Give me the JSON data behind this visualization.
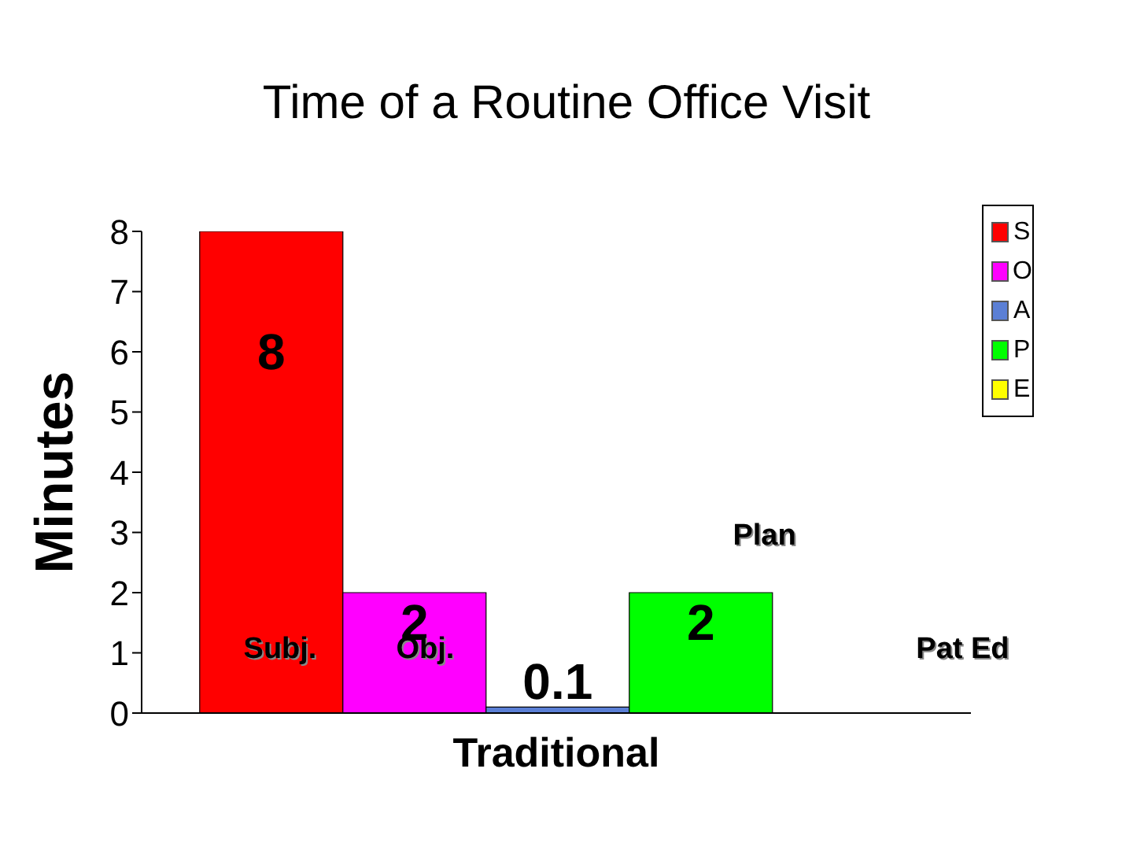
{
  "chart_data": {
    "type": "bar",
    "title": "Time of a Routine Office Visit",
    "ylabel": "Minutes",
    "categories": [
      "Traditional"
    ],
    "series": [
      {
        "name": "S",
        "color": "#ff0000",
        "values": [
          8
        ]
      },
      {
        "name": "O",
        "color": "#ff00ff",
        "values": [
          2
        ]
      },
      {
        "name": "A",
        "color": "#5b7fd5",
        "values": [
          0.1
        ]
      },
      {
        "name": "P",
        "color": "#00ff00",
        "values": [
          2
        ]
      },
      {
        "name": "E",
        "color": "#ffff00",
        "values": [
          null
        ]
      }
    ],
    "ylim": [
      0,
      8
    ],
    "yticks": [
      0,
      1,
      2,
      3,
      4,
      5,
      6,
      7,
      8
    ],
    "data_labels": true,
    "legend": "top right",
    "annotations": [
      "Subj.",
      "Obj.",
      "Plan",
      "Pat Ed"
    ]
  }
}
